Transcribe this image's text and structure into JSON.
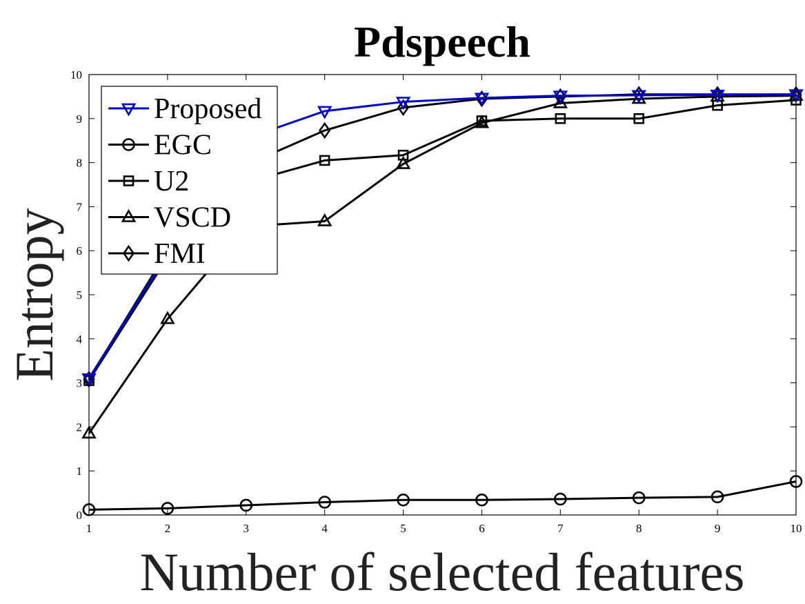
{
  "chart_data": {
    "type": "line",
    "title": "Pdspeech",
    "xlabel": "Number of selected features",
    "ylabel": "Entropy",
    "x": [
      1,
      2,
      3,
      4,
      5,
      6,
      7,
      8,
      9,
      10
    ],
    "xlim": [
      1,
      10
    ],
    "ylim": [
      0,
      10
    ],
    "xticks": [
      "1",
      "2",
      "3",
      "4",
      "5",
      "6",
      "7",
      "8",
      "9",
      "10"
    ],
    "yticks": [
      "0",
      "1",
      "2",
      "3",
      "4",
      "5",
      "6",
      "7",
      "8",
      "9",
      "10"
    ],
    "grid": false,
    "legend_position": "top-left",
    "series": [
      {
        "name": "Proposed",
        "marker": "triangle-down",
        "color": "#0000CC",
        "values": [
          3.1,
          5.95,
          8.55,
          9.17,
          9.38,
          9.47,
          9.52,
          9.53,
          9.54,
          9.55
        ]
      },
      {
        "name": "EGC",
        "marker": "circle",
        "color": "#000000",
        "values": [
          0.12,
          0.15,
          0.22,
          0.29,
          0.34,
          0.34,
          0.36,
          0.39,
          0.41,
          0.76
        ]
      },
      {
        "name": "U2",
        "marker": "square",
        "color": "#000000",
        "values": [
          3.05,
          5.85,
          7.55,
          8.05,
          8.17,
          8.95,
          9.0,
          9.0,
          9.3,
          9.42
        ]
      },
      {
        "name": "VSCD",
        "marker": "triangle-up",
        "color": "#000000",
        "values": [
          1.85,
          4.45,
          6.55,
          6.67,
          7.97,
          8.9,
          9.35,
          9.45,
          9.5,
          9.52
        ]
      },
      {
        "name": "FMI",
        "marker": "diamond",
        "color": "#000000",
        "values": [
          3.08,
          6.0,
          7.95,
          8.73,
          9.25,
          9.45,
          9.5,
          9.55,
          9.55,
          9.55
        ]
      }
    ]
  }
}
